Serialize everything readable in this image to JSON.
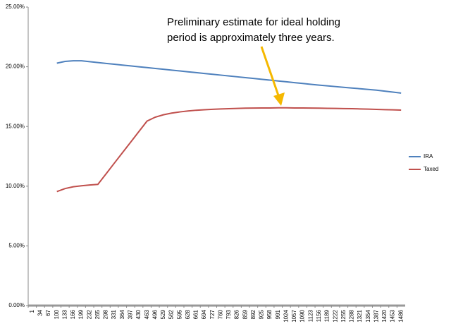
{
  "chart_data": {
    "type": "line",
    "annotation": [
      "Preliminary estimate  for ideal holding",
      "period is approximately three years."
    ],
    "annotation_color": "#f5b800",
    "categories": [
      "1",
      "34",
      "67",
      "100",
      "133",
      "166",
      "199",
      "232",
      "265",
      "298",
      "331",
      "364",
      "397",
      "430",
      "463",
      "496",
      "529",
      "562",
      "595",
      "628",
      "661",
      "694",
      "727",
      "760",
      "793",
      "826",
      "859",
      "892",
      "925",
      "958",
      "991",
      "1024",
      "1057",
      "1090",
      "1123",
      "1156",
      "1189",
      "1222",
      "1255",
      "1288",
      "1321",
      "1354",
      "1387",
      "1420",
      "1453",
      "1486"
    ],
    "series": [
      {
        "name": "IRA",
        "color": "#4f81bd",
        "values": [
          null,
          null,
          null,
          20.3,
          20.45,
          20.5,
          20.5,
          20.43,
          20.35,
          20.28,
          20.21,
          20.14,
          20.07,
          20.0,
          19.93,
          19.86,
          19.79,
          19.72,
          19.65,
          19.58,
          19.51,
          19.44,
          19.37,
          19.3,
          19.23,
          19.16,
          19.09,
          19.02,
          18.95,
          18.88,
          18.81,
          18.74,
          18.67,
          18.6,
          18.53,
          18.46,
          18.4,
          18.34,
          18.28,
          18.22,
          18.16,
          18.1,
          18.04,
          17.96,
          17.88,
          17.8
        ]
      },
      {
        "name": "Taxed",
        "color": "#c0504d",
        "values": [
          null,
          null,
          null,
          9.55,
          9.8,
          9.95,
          10.03,
          10.1,
          10.15,
          11.03,
          11.92,
          12.8,
          13.68,
          14.57,
          15.45,
          15.78,
          15.98,
          16.12,
          16.22,
          16.3,
          16.36,
          16.4,
          16.44,
          16.47,
          16.49,
          16.51,
          16.53,
          16.54,
          16.55,
          16.55,
          16.56,
          16.56,
          16.55,
          16.55,
          16.54,
          16.53,
          16.52,
          16.51,
          16.5,
          16.49,
          16.47,
          16.45,
          16.43,
          16.41,
          16.39,
          16.37
        ]
      }
    ],
    "ylim": [
      0,
      25
    ],
    "yticks": [
      {
        "value": 0,
        "label": "0.00%"
      },
      {
        "value": 5,
        "label": "5.00%"
      },
      {
        "value": 10,
        "label": "10.00%"
      },
      {
        "value": 15,
        "label": "15.00%"
      },
      {
        "value": 20,
        "label": "20.00%"
      },
      {
        "value": 25,
        "label": "25.00%"
      }
    ],
    "grid": false,
    "legend": "right"
  }
}
